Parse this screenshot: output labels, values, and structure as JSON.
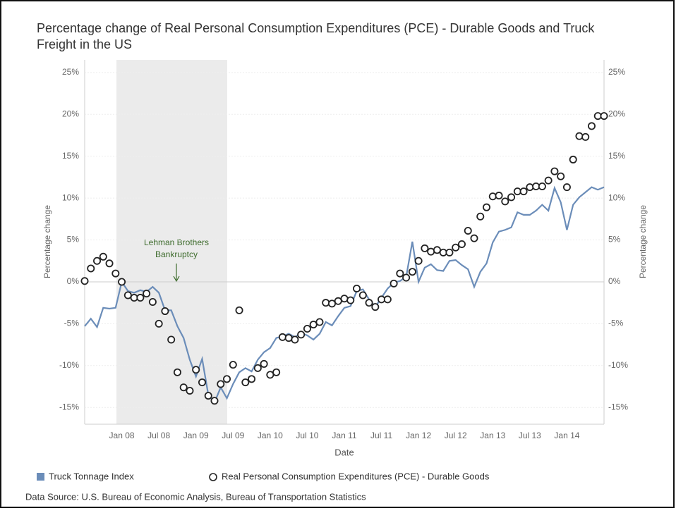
{
  "chart_data": {
    "type": "combo",
    "title": "Percentage change of Real Personal Consumption Expenditures (PCE) - Durable Goods and Truck Freight in the US",
    "x_label": "Date",
    "y_label": "Percentage change",
    "y2_label": "Percentage change",
    "annotation": [
      "Lehman Brothers",
      "Bankruptcy"
    ],
    "source": "Data Source: U.S. Bureau of Economic Analysis, Bureau of Transportation Statistics",
    "categories": [
      null,
      null,
      null,
      null,
      null,
      null,
      "Jan 08",
      null,
      null,
      null,
      null,
      null,
      "Jul 08",
      null,
      null,
      null,
      null,
      null,
      "Jan 09",
      null,
      null,
      null,
      null,
      null,
      "Jul 09",
      null,
      null,
      null,
      null,
      null,
      "Jan 10",
      null,
      null,
      null,
      null,
      null,
      "Jul 10",
      null,
      null,
      null,
      null,
      null,
      "Jan 11",
      null,
      null,
      null,
      null,
      null,
      "Jul 11",
      null,
      null,
      null,
      null,
      null,
      "Jan 12",
      null,
      null,
      null,
      null,
      null,
      "Jul 12",
      null,
      null,
      null,
      null,
      null,
      "Jan 13",
      null,
      null,
      null,
      null,
      null,
      "Jul 13",
      null,
      null,
      null,
      null,
      null,
      "Jan 14",
      null,
      null,
      null,
      null,
      null,
      null
    ],
    "series": [
      {
        "name": "Truck Tonnage Index",
        "type": "line",
        "color": "#6b8db9",
        "values": [
          -5.3,
          -4.4,
          -5.4,
          -3.1,
          -3.2,
          -3.1,
          0,
          -1.1,
          -1.3,
          -1.0,
          -1.2,
          -0.6,
          -1.3,
          -3.4,
          -3.4,
          -5.3,
          -6.7,
          -9.3,
          -11.3,
          -9.2,
          -13.5,
          -14.4,
          -12.6,
          -13.9,
          -12.2,
          -10.8,
          -10.3,
          -10.7,
          -9.3,
          -8.4,
          -7.9,
          -6.7,
          -6.5,
          -6.2,
          -6.6,
          -6.1,
          -6.4,
          -6.9,
          -6.2,
          -4.8,
          -5.2,
          -4.1,
          -3.1,
          -2.9,
          -1.1,
          -0.9,
          -2.1,
          -3.0,
          -1.9,
          -0.8,
          -0.1,
          0.1,
          0.6,
          4.8,
          0,
          1.7,
          2.1,
          1.4,
          1.3,
          2.5,
          2.6,
          2.0,
          1.5,
          -0.6,
          1.2,
          2.2,
          4.7,
          6.0,
          6.2,
          6.5,
          8.3,
          8.0,
          8.0,
          8.5,
          9.2,
          8.5,
          11.2,
          9.5,
          6.2,
          9.2,
          10.1,
          10.7,
          11.3,
          11.0,
          11.3
        ]
      },
      {
        "name": "Real Personal Consumption Expenditures (PCE) - Durable Goods",
        "type": "scatter",
        "color": "#222222",
        "values": [
          0.1,
          1.6,
          2.5,
          3.0,
          2.2,
          1.0,
          0,
          -1.6,
          -1.9,
          -1.9,
          -1.4,
          -2.4,
          -5.0,
          -3.5,
          -6.9,
          -10.8,
          -12.6,
          -13.0,
          -10.5,
          -12.0,
          -13.6,
          -14.2,
          -12.2,
          -11.6,
          -9.9,
          -3.4,
          -12.0,
          -11.6,
          -10.3,
          -9.8,
          -11.1,
          -10.8,
          -6.6,
          -6.7,
          -6.9,
          -6.3,
          -5.6,
          -5.1,
          -4.8,
          -2.5,
          -2.6,
          -2.3,
          -2.0,
          -2.2,
          -0.8,
          -1.6,
          -2.5,
          -3.0,
          -2.1,
          -2.1,
          -0.2,
          1.0,
          0.5,
          1.2,
          2.5,
          4.0,
          3.6,
          3.8,
          3.5,
          3.5,
          4.1,
          4.5,
          6.1,
          5.2,
          7.8,
          8.9,
          10.2,
          10.3,
          9.6,
          10.1,
          10.8,
          10.8,
          11.3,
          11.4,
          11.4,
          12.1,
          13.2,
          12.6,
          11.3,
          14.6,
          17.4,
          17.3,
          18.6,
          19.8,
          19.8
        ]
      }
    ],
    "ylim": [
      -17,
      26.5
    ],
    "yticks": [
      {
        "value": -15,
        "label": "-15%"
      },
      {
        "value": -10,
        "label": "-10%"
      },
      {
        "value": -5,
        "label": "-5%"
      },
      {
        "value": 0,
        "label": "0%"
      },
      {
        "value": 5,
        "label": "5%"
      },
      {
        "value": 10,
        "label": "10%"
      },
      {
        "value": 15,
        "label": "15%"
      },
      {
        "value": 20,
        "label": "20%"
      },
      {
        "value": 25,
        "label": "25%"
      }
    ],
    "grid": true
  }
}
